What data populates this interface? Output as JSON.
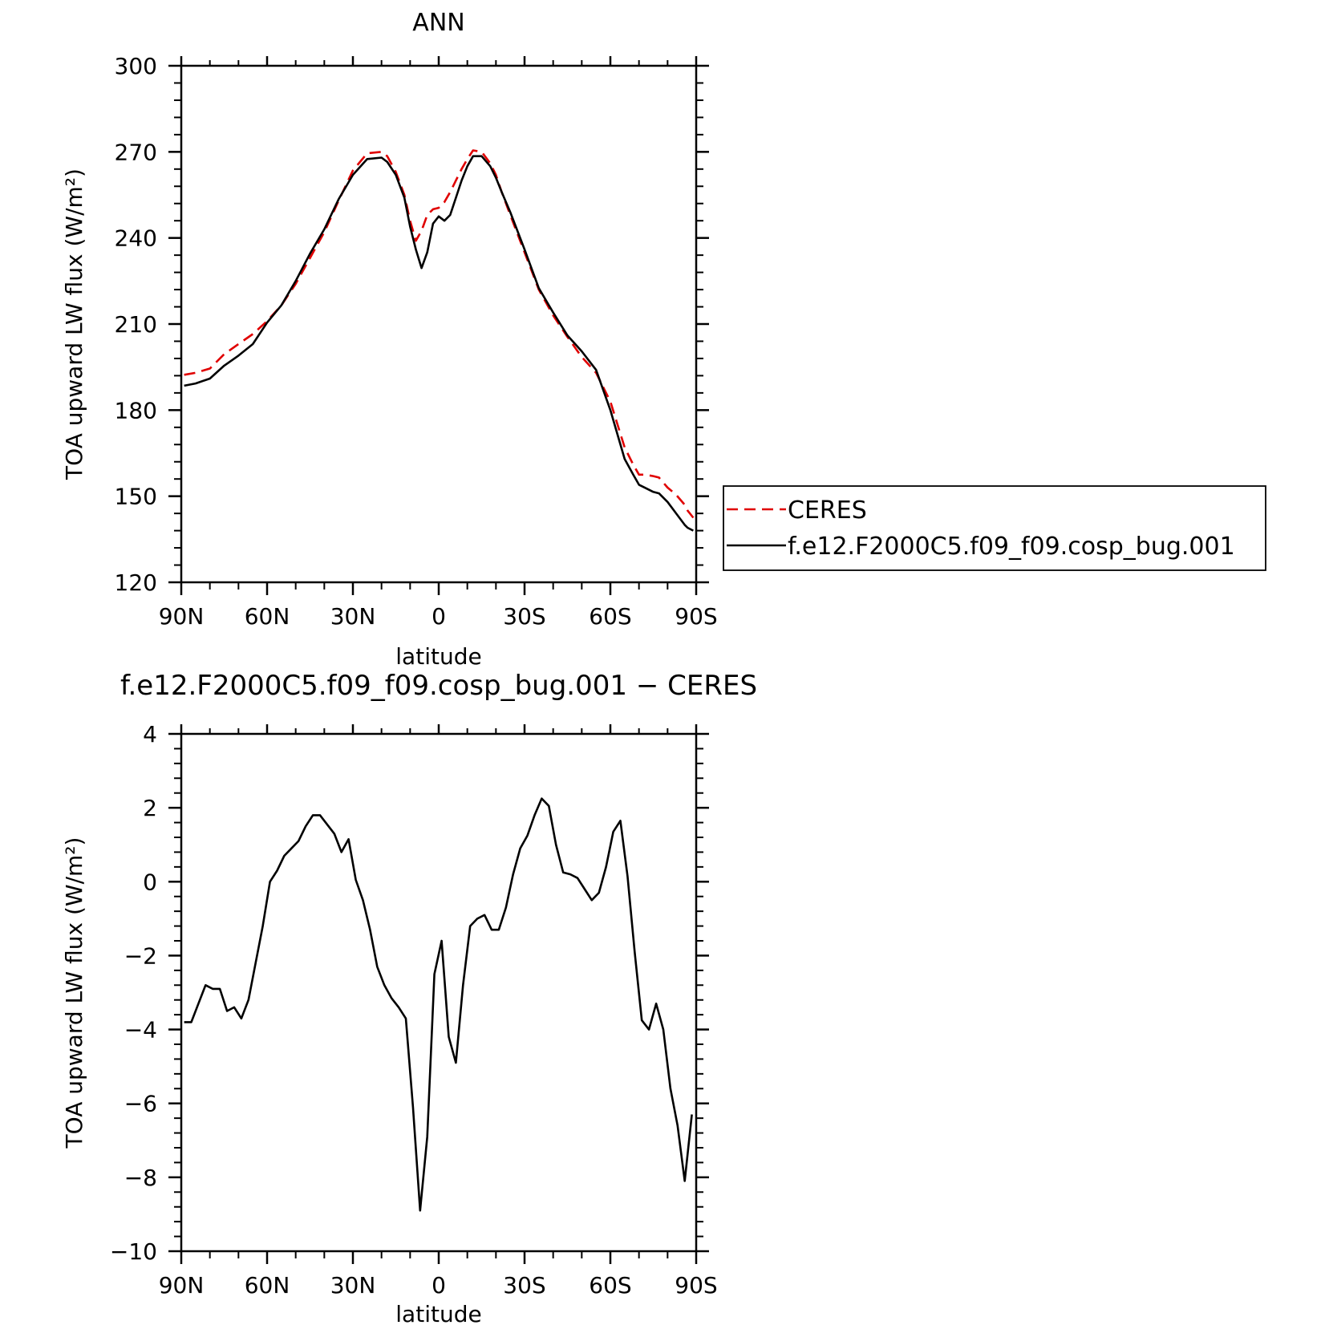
{
  "chart_data": [
    {
      "type": "line",
      "title": "ANN",
      "xlabel": "latitude",
      "ylabel": "TOA upward LW flux (W/m²)",
      "xlim": [
        90,
        -90
      ],
      "ylim": [
        120,
        300
      ],
      "x_ticks": [
        90,
        60,
        30,
        0,
        -30,
        -60,
        -90
      ],
      "x_tick_labels": [
        "90N",
        "60N",
        "30N",
        "0",
        "30S",
        "60S",
        "90S"
      ],
      "y_ticks": [
        120,
        150,
        180,
        210,
        240,
        270,
        300
      ],
      "y_tick_labels": [
        "120",
        "150",
        "180",
        "210",
        "240",
        "270",
        "300"
      ],
      "legend": {
        "position": "right"
      },
      "series": [
        {
          "name": "CERES",
          "color": "#e00000",
          "dash": "dashed",
          "x": [
            89,
            85,
            80,
            75,
            70,
            65,
            60,
            55,
            50,
            45,
            40,
            35,
            30,
            25,
            20,
            18,
            15,
            12,
            10,
            8,
            6,
            4,
            2,
            0,
            -2,
            -4,
            -6,
            -8,
            -10,
            -12,
            -15,
            -18,
            -20,
            -22,
            -25,
            -30,
            -35,
            -40,
            -45,
            -50,
            -55,
            -60,
            -65,
            -68,
            -70,
            -72,
            -75,
            -77,
            -80,
            -83,
            -86,
            -87,
            -89
          ],
          "values": [
            192.3,
            193.0,
            194.5,
            199.5,
            203.0,
            206.5,
            211.0,
            216.5,
            224.0,
            233.0,
            242.0,
            253.0,
            263.5,
            269.5,
            270.0,
            268.5,
            263.0,
            255.0,
            246.0,
            239.0,
            242.5,
            248.0,
            250.0,
            250.5,
            252.5,
            256.0,
            260.0,
            264.0,
            267.5,
            270.5,
            270.0,
            266.0,
            262.0,
            256.0,
            248.0,
            235.0,
            222.0,
            213.0,
            205.5,
            198.5,
            193.0,
            183.0,
            167.0,
            161.0,
            157.5,
            157.5,
            157.0,
            156.5,
            153.0,
            150.5,
            147.0,
            145.0,
            142.5
          ]
        },
        {
          "name": "f.e12.F2000C5.f09_f09.cosp_bug.001",
          "color": "#000000",
          "dash": "solid",
          "x": [
            89,
            85,
            80,
            75,
            70,
            65,
            60,
            55,
            50,
            45,
            40,
            35,
            30,
            25,
            20,
            18,
            15,
            12,
            10,
            8,
            6,
            4,
            2,
            0,
            -2,
            -4,
            -6,
            -8,
            -10,
            -12,
            -15,
            -18,
            -20,
            -22,
            -25,
            -30,
            -35,
            -40,
            -45,
            -50,
            -55,
            -60,
            -65,
            -68,
            -70,
            -72,
            -75,
            -77,
            -80,
            -83,
            -86,
            -87,
            -89
          ],
          "values": [
            188.5,
            189.3,
            191.0,
            195.5,
            199.0,
            203.0,
            210.5,
            216.5,
            225.0,
            234.5,
            243.0,
            253.5,
            262.0,
            267.5,
            268.0,
            266.5,
            262.0,
            254.0,
            244.0,
            236.0,
            229.5,
            235.0,
            245.0,
            247.5,
            246.0,
            248.0,
            254.0,
            260.0,
            265.0,
            268.5,
            268.5,
            265.0,
            261.0,
            256.0,
            249.0,
            236.0,
            222.5,
            214.0,
            206.0,
            200.5,
            194.0,
            180.0,
            163.0,
            157.5,
            154.0,
            153.0,
            151.5,
            151.0,
            148.0,
            144.0,
            140.0,
            139.0,
            138.0
          ]
        }
      ]
    },
    {
      "type": "line",
      "title": "f.e12.F2000C5.f09_f09.cosp_bug.001 − CERES",
      "xlabel": "latitude",
      "ylabel": "TOA upward LW flux (W/m²)",
      "xlim": [
        90,
        -90
      ],
      "ylim": [
        -10,
        4
      ],
      "x_ticks": [
        90,
        60,
        30,
        0,
        -30,
        -60,
        -90
      ],
      "x_tick_labels": [
        "90N",
        "60N",
        "30N",
        "0",
        "30S",
        "60S",
        "90S"
      ],
      "y_ticks": [
        -10,
        -8,
        -6,
        -4,
        -2,
        0,
        2,
        4
      ],
      "y_tick_labels": [
        "−10",
        "−8",
        "−6",
        "−4",
        "−2",
        "0",
        "2",
        "4"
      ],
      "series": [
        {
          "color": "#000000",
          "x": [
            89,
            86.5,
            84,
            81.5,
            79,
            76.5,
            74,
            71.5,
            69,
            66.5,
            64,
            61.5,
            59,
            56.5,
            54,
            51.5,
            49,
            46.5,
            44,
            41.5,
            39,
            36.5,
            34,
            31.5,
            29,
            26.5,
            24,
            21.5,
            19,
            16.5,
            14,
            11.5,
            9,
            6.5,
            4,
            1.5,
            -1,
            -3.5,
            -6,
            -8.5,
            -11,
            -13.5,
            -16,
            -18.5,
            -21,
            -23.5,
            -26,
            -28.5,
            -31,
            -33.5,
            -36,
            -38.5,
            -41,
            -43.5,
            -46,
            -48.5,
            -51,
            -53.5,
            -56,
            -58.5,
            -61,
            -63.5,
            -66,
            -68.5,
            -71,
            -73.5,
            -76,
            -78.5,
            -81,
            -83.5,
            -86,
            -88.5
          ],
          "values": [
            -3.8,
            -3.8,
            -3.3,
            -2.8,
            -2.9,
            -2.9,
            -3.5,
            -3.4,
            -3.7,
            -3.2,
            -2.2,
            -1.2,
            0.0,
            0.3,
            0.7,
            0.9,
            1.1,
            1.5,
            1.8,
            1.8,
            1.55,
            1.3,
            0.8,
            1.15,
            0.05,
            -0.5,
            -1.3,
            -2.3,
            -2.8,
            -3.15,
            -3.4,
            -3.7,
            -6.1,
            -8.9,
            -6.9,
            -2.5,
            -1.6,
            -4.2,
            -4.9,
            -2.8,
            -1.2,
            -1.0,
            -0.9,
            -1.3,
            -1.3,
            -0.7,
            0.2,
            0.9,
            1.25,
            1.8,
            2.25,
            2.05,
            1.0,
            0.25,
            0.2,
            0.1,
            -0.2,
            -0.5,
            -0.3,
            0.4,
            1.35,
            1.65,
            0.15,
            -1.9,
            -3.75,
            -4.0,
            -3.3,
            -4.0,
            -5.6,
            -6.6,
            -8.1,
            -6.3
          ]
        }
      ]
    }
  ]
}
